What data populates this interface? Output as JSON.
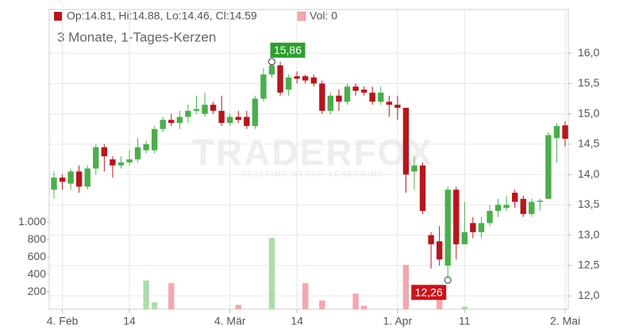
{
  "chart_data": {
    "type": "candlestick",
    "subtitle": "3 Monate, 1-Tages-Kerzen",
    "legend": [
      "Op:14.81, Hi:14.88, Lo:14.46, Cl:14.59",
      "Vol: 0"
    ],
    "watermark": "TRADERFOX",
    "watermark_sub": "REALTIME STOCK SCREENING",
    "up_color": "#4cae4c",
    "down_color": "#b5171d",
    "volume_up_color": "#acdcac",
    "volume_down_color": "#f2a7b0",
    "categories": [
      null,
      "4. Feb",
      null,
      null,
      null,
      null,
      null,
      null,
      null,
      "14",
      null,
      null,
      null,
      null,
      null,
      null,
      null,
      null,
      null,
      null,
      null,
      "4. Mär",
      null,
      null,
      null,
      null,
      null,
      null,
      null,
      "14",
      null,
      null,
      null,
      null,
      null,
      null,
      null,
      null,
      null,
      null,
      null,
      "1. Apr",
      null,
      null,
      null,
      null,
      null,
      null,
      null,
      "11",
      null,
      null,
      null,
      null,
      null,
      null,
      null,
      null,
      null,
      null,
      null,
      "2. Mai"
    ],
    "open": [
      13.75,
      13.95,
      13.85,
      14.05,
      13.8,
      14.1,
      14.45,
      14.25,
      14.15,
      14.2,
      14.25,
      14.4,
      14.4,
      14.75,
      14.9,
      14.85,
      14.95,
      15.05,
      15.0,
      15.15,
      15.05,
      14.85,
      14.95,
      14.95,
      14.8,
      15.25,
      15.65,
      15.8,
      15.4,
      15.62,
      15.62,
      15.6,
      15.5,
      15.05,
      15.3,
      15.2,
      15.45,
      15.4,
      15.35,
      15.2,
      15.2,
      15.15,
      15.1,
      14.05,
      14.15,
      13.0,
      12.9,
      12.5,
      13.75,
      12.85,
      13.2,
      13.05,
      13.2,
      13.4,
      13.45,
      13.7,
      13.6,
      13.35,
      13.55,
      13.6,
      14.6,
      14.81
    ],
    "high": [
      14.05,
      14.0,
      14.1,
      14.15,
      14.15,
      14.5,
      14.5,
      14.3,
      14.3,
      14.4,
      14.6,
      14.55,
      14.8,
      14.95,
      15.0,
      15.05,
      15.15,
      15.3,
      15.35,
      15.2,
      15.3,
      15.0,
      15.05,
      15.05,
      15.3,
      15.75,
      15.86,
      15.86,
      15.65,
      15.7,
      15.65,
      15.65,
      15.55,
      15.35,
      15.4,
      15.5,
      15.5,
      15.45,
      15.45,
      15.45,
      15.3,
      15.3,
      15.1,
      14.3,
      14.2,
      13.05,
      13.15,
      13.8,
      13.8,
      13.55,
      13.3,
      13.3,
      13.5,
      13.6,
      13.65,
      13.75,
      13.65,
      13.6,
      13.6,
      14.7,
      14.85,
      14.88
    ],
    "low": [
      13.6,
      13.75,
      13.75,
      13.7,
      13.75,
      14.0,
      14.05,
      13.95,
      14.1,
      14.15,
      14.2,
      14.35,
      14.35,
      14.7,
      14.8,
      14.75,
      14.85,
      15.0,
      14.95,
      15.0,
      14.8,
      14.8,
      14.85,
      14.75,
      14.75,
      15.2,
      15.6,
      15.3,
      15.3,
      15.5,
      15.5,
      15.45,
      15.0,
      15.0,
      15.05,
      15.15,
      15.3,
      15.3,
      15.15,
      15.15,
      14.95,
      14.9,
      13.7,
      13.75,
      13.35,
      12.45,
      12.5,
      12.26,
      12.6,
      12.85,
      12.95,
      12.95,
      13.15,
      13.3,
      13.4,
      13.45,
      13.3,
      13.3,
      13.4,
      13.6,
      14.2,
      14.46
    ],
    "close": [
      13.95,
      13.88,
      14.05,
      13.8,
      14.1,
      14.45,
      14.3,
      14.15,
      14.2,
      14.25,
      14.45,
      14.5,
      14.75,
      14.9,
      14.85,
      14.95,
      15.05,
      15.08,
      15.15,
      15.05,
      14.85,
      14.95,
      14.9,
      14.8,
      15.25,
      15.65,
      15.8,
      15.35,
      15.6,
      15.58,
      15.55,
      15.5,
      15.05,
      15.3,
      15.2,
      15.45,
      15.38,
      15.35,
      15.2,
      15.35,
      15.15,
      15.1,
      14.0,
      14.15,
      13.4,
      12.85,
      12.6,
      13.75,
      12.85,
      13.05,
      13.05,
      13.2,
      13.4,
      13.5,
      13.5,
      13.55,
      13.35,
      13.55,
      13.57,
      14.65,
      14.8,
      14.59
    ],
    "volume": [
      0,
      0,
      0,
      0,
      0,
      0,
      0,
      0,
      0,
      0,
      0,
      330,
      80,
      0,
      300,
      0,
      0,
      0,
      0,
      0,
      0,
      0,
      50,
      0,
      0,
      0,
      820,
      0,
      0,
      0,
      300,
      0,
      100,
      0,
      0,
      0,
      180,
      40,
      0,
      0,
      0,
      0,
      510,
      0,
      0,
      0,
      200,
      0,
      0,
      30,
      0,
      0,
      0,
      0,
      0,
      0,
      0,
      0,
      0,
      0,
      0,
      0
    ],
    "ylim": [
      11.78,
      16.72
    ],
    "yticks": [
      {
        "value": 12.0,
        "label": "12,0"
      },
      {
        "value": 12.5,
        "label": "12,5"
      },
      {
        "value": 13.0,
        "label": "13,0"
      },
      {
        "value": 13.5,
        "label": "13,5"
      },
      {
        "value": 14.0,
        "label": "14,0"
      },
      {
        "value": 14.5,
        "label": "14,5"
      },
      {
        "value": 15.0,
        "label": "15,0"
      },
      {
        "value": 15.5,
        "label": "15,5"
      },
      {
        "value": 16.0,
        "label": "16,0"
      }
    ],
    "y2lim": [
      0,
      3445
    ],
    "y2ticks": [
      200,
      400,
      600,
      800,
      {
        "value": 1000,
        "label": "1.000"
      }
    ],
    "annotations": [
      {
        "value": 15.86,
        "label": "15,86",
        "kind": "high"
      },
      {
        "value": 12.26,
        "label": "12,26",
        "kind": "low"
      }
    ],
    "grid": true
  }
}
